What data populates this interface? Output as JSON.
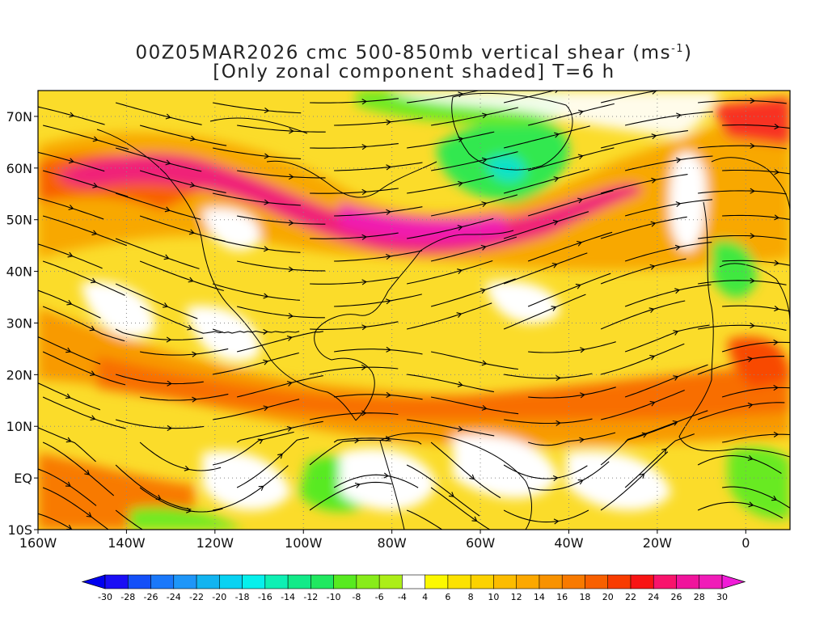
{
  "title_line1": "00Z05MAR2026 cmc 500-850mb vertical shear (ms",
  "title_sup": "-1",
  "title_line1_end": ")",
  "title_line2": "[Only zonal component shaded] T=6 h",
  "map": {
    "projection": "lat-lon",
    "lon_range": [
      -160,
      10
    ],
    "lat_range": [
      -10,
      75
    ],
    "lat_labels": [
      {
        "lat": 70,
        "text": "70N"
      },
      {
        "lat": 60,
        "text": "60N"
      },
      {
        "lat": 50,
        "text": "50N"
      },
      {
        "lat": 40,
        "text": "40N"
      },
      {
        "lat": 30,
        "text": "30N"
      },
      {
        "lat": 20,
        "text": "20N"
      },
      {
        "lat": 10,
        "text": "10N"
      },
      {
        "lat": 0,
        "text": "EQ"
      },
      {
        "lat": -10,
        "text": "10S"
      }
    ],
    "lon_labels": [
      {
        "lon": -160,
        "text": "160W"
      },
      {
        "lon": -140,
        "text": "140W"
      },
      {
        "lon": -120,
        "text": "120W"
      },
      {
        "lon": -100,
        "text": "100W"
      },
      {
        "lon": -80,
        "text": "80W"
      },
      {
        "lon": -60,
        "text": "60W"
      },
      {
        "lon": -40,
        "text": "40W"
      },
      {
        "lon": -20,
        "text": "20W"
      },
      {
        "lon": 0,
        "text": "0"
      }
    ],
    "grid": "dotted",
    "streamlines": true
  },
  "colorbar": {
    "labels": [
      "-30",
      "-28",
      "-26",
      "-24",
      "-22",
      "-20",
      "-18",
      "-16",
      "-14",
      "-12",
      "-10",
      "-8",
      "-6",
      "-4",
      "4",
      "6",
      "8",
      "10",
      "12",
      "14",
      "16",
      "18",
      "20",
      "22",
      "24",
      "26",
      "28",
      "30"
    ],
    "colors": [
      "#1a0ef5",
      "#1450f8",
      "#1a78fa",
      "#1e96f8",
      "#12b4f0",
      "#08d2f2",
      "#06f0ec",
      "#0ef0b4",
      "#12ea88",
      "#20e860",
      "#58ea20",
      "#88ec1a",
      "#acee18",
      "#ffffff",
      "#fcf800",
      "#fce200",
      "#fcd200",
      "#fcbc00",
      "#fca800",
      "#f89200",
      "#f87a00",
      "#f86000",
      "#f83c00",
      "#f81414",
      "#f8146c",
      "#f0149c",
      "#f01cb8"
    ],
    "low_arrow_color": "#0000f0",
    "high_arrow_color": "#f01cd8"
  }
}
